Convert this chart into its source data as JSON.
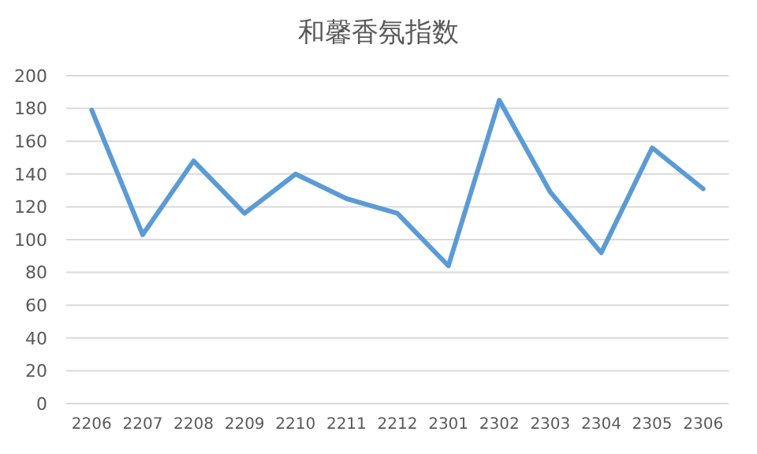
{
  "chart_data": {
    "type": "line",
    "title": "和馨香氛指数",
    "categories": [
      "2206",
      "2207",
      "2208",
      "2209",
      "2210",
      "2211",
      "2212",
      "2301",
      "2302",
      "2303",
      "2304",
      "2305",
      "2306"
    ],
    "series": [
      {
        "color": "#5b9bd5",
        "values": [
          179,
          103,
          148,
          116,
          140,
          125,
          116,
          84,
          185,
          129,
          92,
          156,
          131
        ]
      }
    ],
    "ylim": [
      0,
      200
    ],
    "yticks": [
      0,
      20,
      40,
      60,
      80,
      100,
      120,
      140,
      160,
      180,
      200
    ],
    "grid": "y",
    "marker": "none",
    "line_style": "solid"
  }
}
